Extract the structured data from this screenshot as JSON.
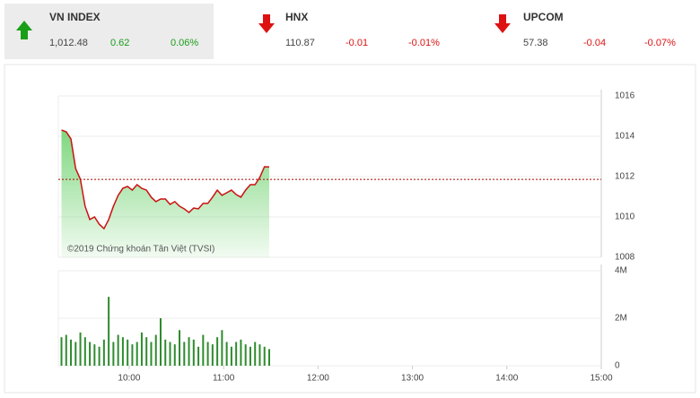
{
  "indices": [
    {
      "name": "VN INDEX",
      "value": "1,012.48",
      "change": "0.62",
      "percent": "0.06%",
      "direction": "up"
    },
    {
      "name": "HNX",
      "value": "110.87",
      "change": "-0.01",
      "percent": "-0.01%",
      "direction": "down"
    },
    {
      "name": "UPCOM",
      "value": "57.38",
      "change": "-0.04",
      "percent": "-0.07%",
      "direction": "down"
    }
  ],
  "chart_data": [
    {
      "type": "line",
      "annotation": "©2019 Chứng khoán Tân Việt (TVSI)",
      "x": [
        557,
        560,
        563,
        566,
        569,
        572,
        575,
        578,
        581,
        584,
        587,
        590,
        593,
        596,
        599,
        602,
        605,
        608,
        611,
        614,
        617,
        620,
        623,
        626,
        629,
        632,
        635,
        638,
        641,
        644,
        647,
        650,
        653,
        656,
        659,
        662,
        665,
        668,
        671,
        674,
        677,
        680,
        683,
        686,
        689
      ],
      "values": [
        1014.31,
        1014.22,
        1013.87,
        1012.4,
        1011.87,
        1010.53,
        1009.87,
        1010.0,
        1009.64,
        1009.42,
        1009.87,
        1010.53,
        1011.07,
        1011.42,
        1011.51,
        1011.33,
        1011.6,
        1011.42,
        1011.33,
        1010.98,
        1010.76,
        1010.89,
        1010.89,
        1010.62,
        1010.76,
        1010.53,
        1010.4,
        1010.22,
        1010.44,
        1010.4,
        1010.67,
        1010.67,
        1010.98,
        1011.33,
        1011.07,
        1011.2,
        1011.33,
        1011.11,
        1010.98,
        1011.33,
        1011.6,
        1011.6,
        1011.96,
        1012.49,
        1012.48
      ],
      "color": "#cc1111",
      "area_color": "#7fd77f",
      "reference_line": 1011.86,
      "reference_color": "#aa0000",
      "xlim": [
        555,
        900
      ],
      "ylim": [
        1008,
        1016
      ],
      "yticks": [
        1008,
        1010,
        1012,
        1014,
        1016
      ],
      "grid": true
    },
    {
      "type": "bar",
      "x": [
        557,
        560,
        563,
        566,
        569,
        572,
        575,
        578,
        581,
        584,
        587,
        590,
        593,
        596,
        599,
        602,
        605,
        608,
        611,
        614,
        617,
        620,
        623,
        626,
        629,
        632,
        635,
        638,
        641,
        644,
        647,
        650,
        653,
        656,
        659,
        662,
        665,
        668,
        671,
        674,
        677,
        680,
        683,
        686,
        689
      ],
      "values": [
        1200000,
        1300000,
        1100000,
        1000000,
        1400000,
        1200000,
        1000000,
        900000,
        800000,
        1100000,
        2900000,
        1000000,
        1300000,
        1200000,
        1100000,
        900000,
        1000000,
        1400000,
        1200000,
        1000000,
        1300000,
        2000000,
        1100000,
        1000000,
        900000,
        1500000,
        1000000,
        1200000,
        1100000,
        800000,
        1300000,
        1000000,
        900000,
        1200000,
        1500000,
        1000000,
        800000,
        1000000,
        1100000,
        900000,
        800000,
        1000000,
        900000,
        800000,
        700000
      ],
      "color": "#2e8b2e",
      "xlim": [
        555,
        900
      ],
      "ylim": [
        0,
        4000000
      ],
      "yticks": [
        0,
        {
          "value": 2000000,
          "label": "2M"
        },
        {
          "value": 4000000,
          "label": "4M"
        }
      ],
      "xticks": [
        {
          "value": 600,
          "label": "10:00"
        },
        {
          "value": 660,
          "label": "11:00"
        },
        {
          "value": 720,
          "label": "12:00"
        },
        {
          "value": 780,
          "label": "13:00"
        },
        {
          "value": 840,
          "label": "14:00"
        },
        {
          "value": 900,
          "label": "15:00"
        }
      ],
      "grid": true
    }
  ]
}
